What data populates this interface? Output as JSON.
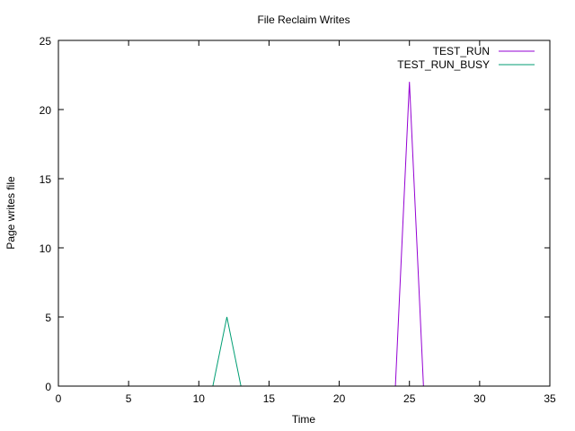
{
  "chart_data": {
    "type": "line",
    "title": "File Reclaim Writes",
    "xlabel": "Time",
    "ylabel": "Page writes file",
    "xlim": [
      0,
      35
    ],
    "ylim": [
      0,
      25
    ],
    "xticks": [
      0,
      5,
      10,
      15,
      20,
      25,
      30,
      35
    ],
    "yticks": [
      0,
      5,
      10,
      15,
      20,
      25
    ],
    "grid": false,
    "legend_position": "top-right",
    "series": [
      {
        "name": "TEST_RUN",
        "color": "#9400d3",
        "x": [
          0,
          1,
          2,
          3,
          4,
          5,
          6,
          7,
          8,
          9,
          10,
          11,
          12,
          13,
          14,
          15,
          16,
          17,
          18,
          19,
          20,
          21,
          22,
          23,
          24,
          25,
          26,
          27,
          28,
          29,
          30,
          31,
          32,
          33,
          34,
          35
        ],
        "y": [
          0,
          0,
          0,
          0,
          0,
          0,
          0,
          0,
          0,
          0,
          0,
          0,
          0,
          0,
          0,
          0,
          0,
          0,
          0,
          0,
          0,
          0,
          0,
          0,
          0,
          22,
          0,
          0,
          0,
          0,
          0,
          0,
          0,
          0,
          0,
          0
        ]
      },
      {
        "name": "TEST_RUN_BUSY",
        "color": "#009e73",
        "x": [
          0,
          1,
          2,
          3,
          4,
          5,
          6,
          7,
          8,
          9,
          10,
          11,
          12,
          13,
          14,
          15,
          16,
          17,
          18,
          19,
          20,
          21,
          22,
          23,
          24,
          25,
          26,
          27,
          28,
          29,
          30,
          31,
          32,
          33,
          34,
          35
        ],
        "y": [
          0,
          0,
          0,
          0,
          0,
          0,
          0,
          0,
          0,
          0,
          0,
          0,
          5,
          0,
          0,
          0,
          0,
          0,
          0,
          0,
          0,
          0,
          0,
          0,
          0,
          0,
          0,
          0,
          0,
          0,
          0,
          0,
          0,
          0,
          0,
          0
        ]
      }
    ]
  }
}
